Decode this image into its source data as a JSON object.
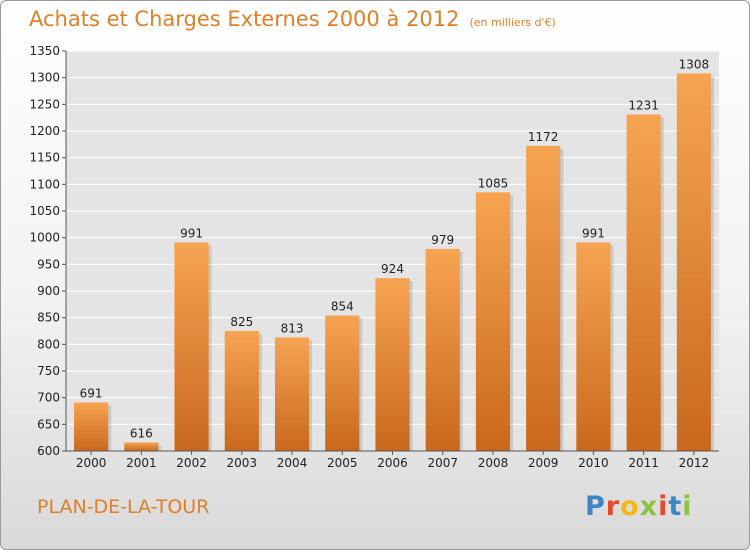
{
  "header": {
    "title": "Achats et Charges Externes 2000 à 2012",
    "subtitle": "(en milliers d'€)"
  },
  "footer": {
    "town": "PLAN-DE-LA-TOUR",
    "logo": "Proxiti",
    "logo_colors": [
      "#3d86c6",
      "#e8482b",
      "#f2b81b",
      "#8dc43f",
      "#e8482b",
      "#3d86c6",
      "#8dc43f"
    ]
  },
  "colors": {
    "bar_top": "#f6a452",
    "bar_bottom": "#c9681c",
    "grid": "#ffffff",
    "plot_bg": "#e4e4e4"
  },
  "chart_data": {
    "type": "bar",
    "categories": [
      "2000",
      "2001",
      "2002",
      "2003",
      "2004",
      "2005",
      "2006",
      "2007",
      "2008",
      "2009",
      "2010",
      "2011",
      "2012"
    ],
    "values": [
      691,
      616,
      991,
      825,
      813,
      854,
      924,
      979,
      1085,
      1172,
      991,
      1231,
      1308
    ],
    "title": "Achats et Charges Externes 2000 à 2012",
    "ylim": [
      600,
      1350
    ],
    "yticks": [
      600,
      650,
      700,
      750,
      800,
      850,
      900,
      950,
      1000,
      1050,
      1100,
      1150,
      1200,
      1250,
      1300,
      1350
    ],
    "grid": true
  }
}
